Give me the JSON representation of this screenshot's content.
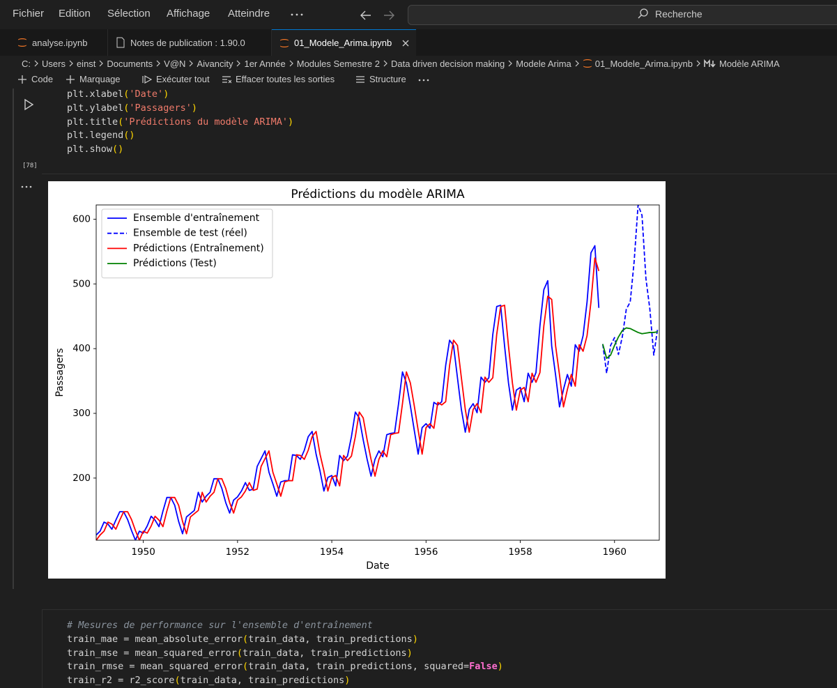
{
  "menu": {
    "items": [
      "Fichier",
      "Edition",
      "Sélection",
      "Affichage",
      "Atteindre"
    ],
    "search": "Recherche"
  },
  "tabs": [
    "analyse.ipynb",
    "Notes de publication : 1.90.0",
    "01_Modele_Arima.ipynb"
  ],
  "breadcrumb": [
    "C:",
    "Users",
    "einst",
    "Documents",
    "V@N",
    "Aivancity",
    "1er Année",
    "Modules Semestre 2",
    "Data driven decision making",
    "Modele Arima",
    "01_Modele_Arima.ipynb",
    "Modèle ARIMA"
  ],
  "toolbar": [
    "Code",
    "Marquage",
    "Exécuter tout",
    "Effacer toutes les sorties",
    "Structure"
  ],
  "cells": [
    {
      "execution_count": "[78]",
      "lines": [
        [
          "plt.xlabel",
          "(",
          "'Date'",
          ")"
        ],
        [
          "plt.ylabel",
          "(",
          "'Passagers'",
          ")"
        ],
        [
          "plt.title",
          "(",
          "'Prédictions du modèle ARIMA'",
          ")"
        ],
        [
          "plt.legend",
          "()"
        ],
        [
          "plt.show",
          "()"
        ]
      ]
    },
    {
      "lines": [
        [
          "# Mesures de performance sur l'ensemble d'entraînement"
        ],
        [
          "train_mae = mean_absolute_error",
          "(",
          "train_data, train_predictions",
          ")"
        ],
        [
          "train_mse = mean_squared_error",
          "(",
          "train_data, train_predictions",
          ")"
        ],
        [
          "train_rmse = mean_squared_error",
          "(",
          "train_data, train_predictions, squared=",
          "False",
          ")"
        ],
        [
          "train_r2 = r2_score",
          "(",
          "train_data, train_predictions",
          ")"
        ]
      ]
    }
  ],
  "chart_data": {
    "type": "line",
    "title": "Prédictions du modèle ARIMA",
    "x_label": "Date",
    "y_label": "Passagers",
    "legend": "upper left",
    "xlim": [
      1949,
      1960.95
    ],
    "ylim": [
      104,
      622
    ],
    "xticks": [
      1950,
      1952,
      1954,
      1956,
      1958,
      1960
    ],
    "yticks": [
      200,
      300,
      400,
      500,
      600
    ],
    "x": [
      1949,
      1949.083,
      1949.167,
      1949.25,
      1949.333,
      1949.417,
      1949.5,
      1949.583,
      1949.667,
      1949.75,
      1949.833,
      1949.917,
      1950,
      1950.083,
      1950.167,
      1950.25,
      1950.333,
      1950.417,
      1950.5,
      1950.583,
      1950.667,
      1950.75,
      1950.833,
      1950.917,
      1951,
      1951.083,
      1951.167,
      1951.25,
      1951.333,
      1951.417,
      1951.5,
      1951.583,
      1951.667,
      1951.75,
      1951.833,
      1951.917,
      1952,
      1952.083,
      1952.167,
      1952.25,
      1952.333,
      1952.417,
      1952.5,
      1952.583,
      1952.667,
      1952.75,
      1952.833,
      1952.917,
      1953,
      1953.083,
      1953.167,
      1953.25,
      1953.333,
      1953.417,
      1953.5,
      1953.583,
      1953.667,
      1953.75,
      1953.833,
      1953.917,
      1954,
      1954.083,
      1954.167,
      1954.25,
      1954.333,
      1954.417,
      1954.5,
      1954.583,
      1954.667,
      1954.75,
      1954.833,
      1954.917,
      1955,
      1955.083,
      1955.167,
      1955.25,
      1955.333,
      1955.417,
      1955.5,
      1955.583,
      1955.667,
      1955.75,
      1955.833,
      1955.917,
      1956,
      1956.083,
      1956.167,
      1956.25,
      1956.333,
      1956.417,
      1956.5,
      1956.583,
      1956.667,
      1956.75,
      1956.833,
      1956.917,
      1957,
      1957.083,
      1957.167,
      1957.25,
      1957.333,
      1957.417,
      1957.5,
      1957.583,
      1957.667,
      1957.75,
      1957.833,
      1957.917,
      1958,
      1958.083,
      1958.167,
      1958.25,
      1958.333,
      1958.417,
      1958.5,
      1958.583,
      1958.667,
      1958.75,
      1958.833,
      1958.917,
      1959,
      1959.083,
      1959.167,
      1959.25,
      1959.333,
      1959.417,
      1959.5,
      1959.583,
      1959.667,
      1959.75,
      1959.833,
      1959.917,
      1960,
      1960.083,
      1960.167,
      1960.25,
      1960.333,
      1960.417,
      1960.5,
      1960.583,
      1960.667,
      1960.75,
      1960.833,
      1960.917
    ],
    "series": [
      {
        "name": "Ensemble d'entraînement",
        "color": "#0000ff",
        "dashed": false,
        "values": [
          112,
          118,
          132,
          129,
          121,
          135,
          148,
          148,
          136,
          119,
          104,
          118,
          115,
          126,
          141,
          135,
          125,
          149,
          170,
          170,
          158,
          133,
          114,
          140,
          145,
          150,
          178,
          163,
          172,
          178,
          199,
          199,
          184,
          162,
          146,
          166,
          171,
          180,
          193,
          181,
          183,
          218,
          230,
          242,
          209,
          191,
          172,
          194,
          196,
          196,
          236,
          235,
          229,
          243,
          264,
          272,
          237,
          211,
          180,
          201,
          204,
          188,
          235,
          227,
          234,
          264,
          302,
          293,
          259,
          229,
          203,
          229,
          242,
          233,
          267,
          269,
          270,
          315,
          364,
          347,
          312,
          274,
          237,
          278,
          284,
          277,
          317,
          313,
          318,
          374,
          413,
          405,
          355,
          306,
          271,
          306,
          315,
          301,
          356,
          348,
          355,
          422,
          465,
          467,
          404,
          347,
          305,
          336,
          340,
          318,
          362,
          348,
          363,
          435,
          491,
          505,
          404,
          359,
          310,
          337,
          360,
          342,
          406,
          396,
          420,
          472,
          548,
          559,
          463,
          null,
          null,
          null,
          null,
          null,
          null,
          null,
          null,
          null,
          null,
          null,
          null,
          null,
          null,
          null
        ]
      },
      {
        "name": "Ensemble de test (réel)",
        "color": "#0000ff",
        "dashed": true,
        "values": [
          null,
          null,
          null,
          null,
          null,
          null,
          null,
          null,
          null,
          null,
          null,
          null,
          null,
          null,
          null,
          null,
          null,
          null,
          null,
          null,
          null,
          null,
          null,
          null,
          null,
          null,
          null,
          null,
          null,
          null,
          null,
          null,
          null,
          null,
          null,
          null,
          null,
          null,
          null,
          null,
          null,
          null,
          null,
          null,
          null,
          null,
          null,
          null,
          null,
          null,
          null,
          null,
          null,
          null,
          null,
          null,
          null,
          null,
          null,
          null,
          null,
          null,
          null,
          null,
          null,
          null,
          null,
          null,
          null,
          null,
          null,
          null,
          null,
          null,
          null,
          null,
          null,
          null,
          null,
          null,
          null,
          null,
          null,
          null,
          null,
          null,
          null,
          null,
          null,
          null,
          null,
          null,
          null,
          null,
          null,
          null,
          null,
          null,
          null,
          null,
          null,
          null,
          null,
          null,
          null,
          null,
          null,
          null,
          null,
          null,
          null,
          null,
          null,
          null,
          null,
          null,
          null,
          null,
          null,
          null,
          null,
          null,
          null,
          null,
          null,
          null,
          null,
          null,
          null,
          407,
          362,
          405,
          417,
          391,
          419,
          461,
          472,
          535,
          622,
          606,
          508,
          461,
          390,
          432
        ]
      },
      {
        "name": "Prédictions (Entraînement)",
        "color": "#ff0000",
        "dashed": false,
        "values": [
          104,
          112,
          118,
          132,
          129,
          121,
          135,
          148,
          148,
          136,
          119,
          104,
          118,
          115,
          126,
          141,
          135,
          125,
          149,
          170,
          170,
          158,
          133,
          114,
          140,
          145,
          150,
          178,
          163,
          172,
          178,
          199,
          199,
          184,
          162,
          146,
          166,
          171,
          180,
          193,
          181,
          183,
          218,
          230,
          242,
          209,
          191,
          172,
          194,
          196,
          196,
          236,
          235,
          229,
          243,
          264,
          272,
          237,
          211,
          180,
          201,
          204,
          188,
          235,
          227,
          234,
          264,
          302,
          293,
          259,
          229,
          203,
          229,
          242,
          233,
          267,
          269,
          270,
          315,
          364,
          347,
          312,
          274,
          237,
          278,
          284,
          277,
          317,
          313,
          318,
          374,
          413,
          405,
          355,
          306,
          271,
          306,
          315,
          301,
          356,
          348,
          355,
          422,
          465,
          467,
          404,
          347,
          305,
          336,
          340,
          318,
          362,
          348,
          363,
          435,
          481,
          476,
          404,
          359,
          310,
          337,
          360,
          342,
          406,
          396,
          420,
          472,
          540,
          520,
          null,
          null,
          null,
          null,
          null,
          null,
          null,
          null,
          null,
          null,
          null,
          null,
          null,
          null,
          null
        ]
      },
      {
        "name": "Prédictions (Test)",
        "color": "#008000",
        "dashed": false,
        "values": [
          null,
          null,
          null,
          null,
          null,
          null,
          null,
          null,
          null,
          null,
          null,
          null,
          null,
          null,
          null,
          null,
          null,
          null,
          null,
          null,
          null,
          null,
          null,
          null,
          null,
          null,
          null,
          null,
          null,
          null,
          null,
          null,
          null,
          null,
          null,
          null,
          null,
          null,
          null,
          null,
          null,
          null,
          null,
          null,
          null,
          null,
          null,
          null,
          null,
          null,
          null,
          null,
          null,
          null,
          null,
          null,
          null,
          null,
          null,
          null,
          null,
          null,
          null,
          null,
          null,
          null,
          null,
          null,
          null,
          null,
          null,
          null,
          null,
          null,
          null,
          null,
          null,
          null,
          null,
          null,
          null,
          null,
          null,
          null,
          null,
          null,
          null,
          null,
          null,
          null,
          null,
          null,
          null,
          null,
          null,
          null,
          null,
          null,
          null,
          null,
          null,
          null,
          null,
          null,
          null,
          null,
          null,
          null,
          null,
          null,
          null,
          null,
          null,
          null,
          null,
          null,
          null,
          null,
          null,
          null,
          null,
          null,
          null,
          null,
          null,
          null,
          null,
          null,
          null,
          407,
          385,
          390,
          405,
          418,
          428,
          432,
          431,
          428,
          425,
          423,
          424,
          425,
          425,
          426
        ]
      }
    ]
  }
}
